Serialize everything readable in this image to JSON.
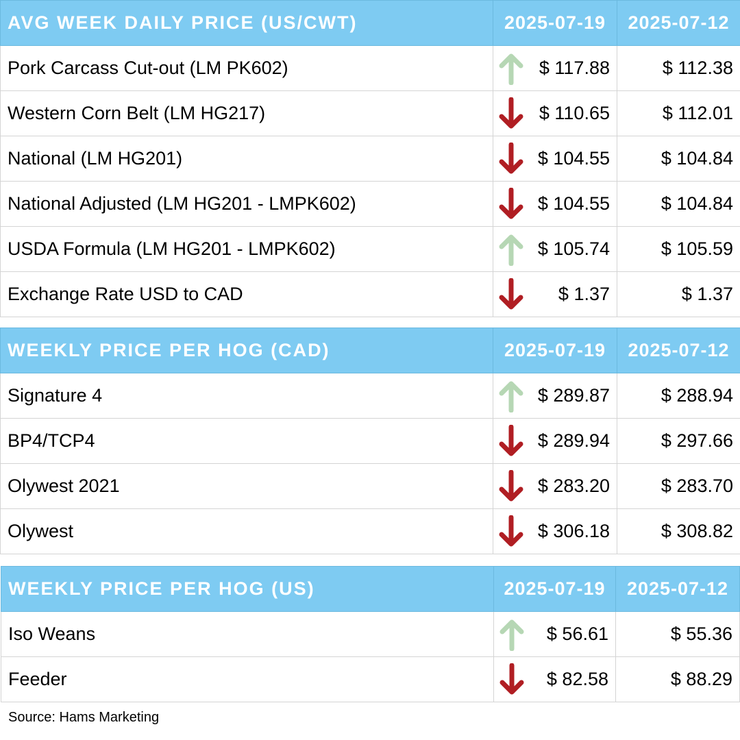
{
  "tables": [
    {
      "header": {
        "title": "AVG WEEK DAILY PRICE (US/CWT)",
        "col1": "2025-07-19",
        "col2": "2025-07-12"
      },
      "rows": [
        {
          "label": "Pork Carcass Cut-out (LM PK602)",
          "trend": "up",
          "current": "$ 117.88",
          "previous": "$ 112.38"
        },
        {
          "label": "Western Corn Belt (LM HG217)",
          "trend": "down",
          "current": "$ 110.65",
          "previous": "$ 112.01"
        },
        {
          "label": "National (LM HG201)",
          "trend": "down",
          "current": "$ 104.55",
          "previous": "$ 104.84"
        },
        {
          "label": "National Adjusted (LM HG201 - LMPK602)",
          "trend": "down",
          "current": "$ 104.55",
          "previous": "$ 104.84"
        },
        {
          "label": "USDA Formula (LM HG201 - LMPK602)",
          "trend": "up",
          "current": "$ 105.74",
          "previous": "$ 105.59"
        },
        {
          "label": "Exchange Rate USD to CAD",
          "trend": "down",
          "current": "$ 1.37",
          "previous": "$ 1.37"
        }
      ]
    },
    {
      "header": {
        "title": "WEEKLY PRICE PER HOG (CAD)",
        "col1": "2025-07-19",
        "col2": "2025-07-12"
      },
      "rows": [
        {
          "label": "Signature 4",
          "trend": "up",
          "current": "$ 289.87",
          "previous": "$ 288.94"
        },
        {
          "label": "BP4/TCP4",
          "trend": "down",
          "current": "$ 289.94",
          "previous": "$ 297.66"
        },
        {
          "label": "Olywest 2021",
          "trend": "down",
          "current": "$ 283.20",
          "previous": "$ 283.70"
        },
        {
          "label": "Olywest",
          "trend": "down",
          "current": "$ 306.18",
          "previous": "$ 308.82"
        }
      ]
    },
    {
      "header": {
        "title": "WEEKLY PRICE PER HOG (US)",
        "col1": "2025-07-19",
        "col2": "2025-07-12"
      },
      "rows": [
        {
          "label": "Iso Weans",
          "trend": "up",
          "current": "$ 56.61",
          "previous": "$ 55.36"
        },
        {
          "label": "Feeder",
          "trend": "down",
          "current": "$ 82.58",
          "previous": "$ 88.29"
        }
      ]
    }
  ],
  "icons": {
    "up": "up-arrow-icon",
    "down": "down-arrow-icon"
  },
  "colors": {
    "header_bg": "#7ecbf2",
    "up_arrow": "#b6d7b4",
    "down_arrow": "#b01e23"
  },
  "source": "Source: Hams Marketing"
}
